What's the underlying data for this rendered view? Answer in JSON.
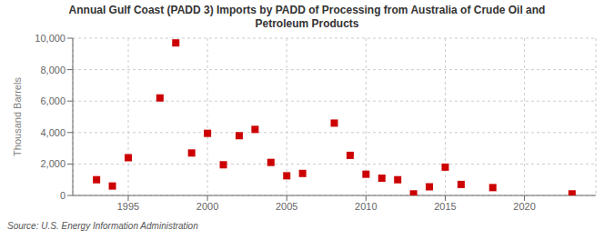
{
  "chart_data": {
    "type": "scatter",
    "title": "Annual Gulf Coast (PADD 3) Imports by PADD of Processing from Australia of Crude Oil and\nPetroleum Products",
    "ylabel": "Thousand Barrels",
    "annotations": [
      "Source: U.S. Energy Information Administration"
    ],
    "x": [
      1993,
      1994,
      1995,
      1997,
      1998,
      1999,
      2000,
      2001,
      2002,
      2003,
      2004,
      2005,
      2006,
      2008,
      2009,
      2010,
      2011,
      2012,
      2013,
      2014,
      2015,
      2016,
      2018,
      2023
    ],
    "values": [
      1000,
      600,
      2400,
      6200,
      9700,
      2700,
      3950,
      1950,
      3800,
      4200,
      2100,
      1250,
      1400,
      4600,
      2550,
      1350,
      1100,
      1000,
      100,
      550,
      1800,
      700,
      500,
      100
    ],
    "color": "#cc0000",
    "marker": "square",
    "xlim": [
      1991.5,
      2024.5
    ],
    "xticks": [
      1995,
      2000,
      2005,
      2010,
      2015,
      2020
    ],
    "ylim": [
      0,
      10000
    ],
    "yticks": [
      0,
      {
        "value": 2000,
        "label": "2,000"
      },
      {
        "value": 4000,
        "label": "4,000"
      },
      {
        "value": 6000,
        "label": "6,000"
      },
      {
        "value": 8000,
        "label": "8,000"
      },
      {
        "value": 10000,
        "label": "10,000"
      }
    ],
    "grid": true
  }
}
